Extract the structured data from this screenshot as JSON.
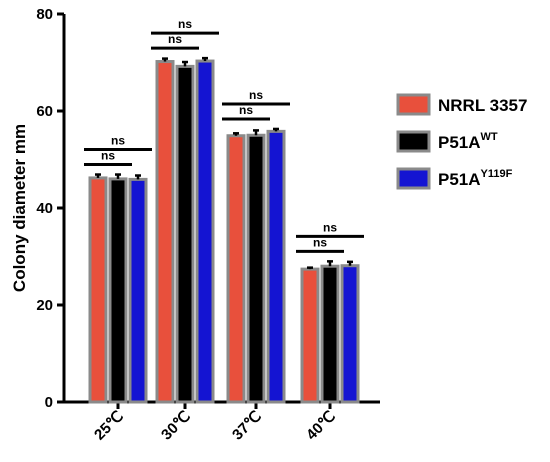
{
  "chart_data": {
    "type": "bar",
    "ylabel": "Colony diameter mm",
    "xlabel": "",
    "ylim": [
      0,
      80
    ],
    "yticks": [
      0,
      20,
      40,
      60,
      80
    ],
    "categories": [
      "25℃",
      "30℃",
      "37℃",
      "40℃"
    ],
    "series": [
      {
        "name": "NRRL 3357",
        "name_sup": "",
        "color": "#e8503c",
        "values": [
          46.2,
          70.2,
          54.9,
          27.4
        ],
        "errors": [
          0.7,
          0.6,
          0.5,
          0.3
        ]
      },
      {
        "name": "P51A",
        "name_sup": "WT",
        "color": "#000000",
        "values": [
          46.0,
          69.2,
          55.0,
          28.0
        ],
        "errors": [
          0.9,
          0.9,
          1.0,
          1.0
        ]
      },
      {
        "name": "P51A",
        "name_sup": "Y119F",
        "color": "#1414d2",
        "values": [
          45.9,
          70.3,
          55.8,
          28.1
        ],
        "errors": [
          0.8,
          0.6,
          0.5,
          0.8
        ]
      }
    ],
    "significance": [
      {
        "category": 0,
        "pair": [
          0,
          1
        ],
        "label": "ns"
      },
      {
        "category": 0,
        "pair": [
          0,
          2
        ],
        "label": "ns"
      },
      {
        "category": 1,
        "pair": [
          0,
          1
        ],
        "label": "ns"
      },
      {
        "category": 1,
        "pair": [
          0,
          2
        ],
        "label": "ns"
      },
      {
        "category": 2,
        "pair": [
          0,
          1
        ],
        "label": "ns"
      },
      {
        "category": 2,
        "pair": [
          0,
          2
        ],
        "label": "ns"
      },
      {
        "category": 3,
        "pair": [
          0,
          1
        ],
        "label": "ns"
      },
      {
        "category": 3,
        "pair": [
          0,
          2
        ],
        "label": "ns"
      }
    ],
    "legend_position": "right",
    "grid": false,
    "bar_outline_color": "#8a8a8a"
  }
}
